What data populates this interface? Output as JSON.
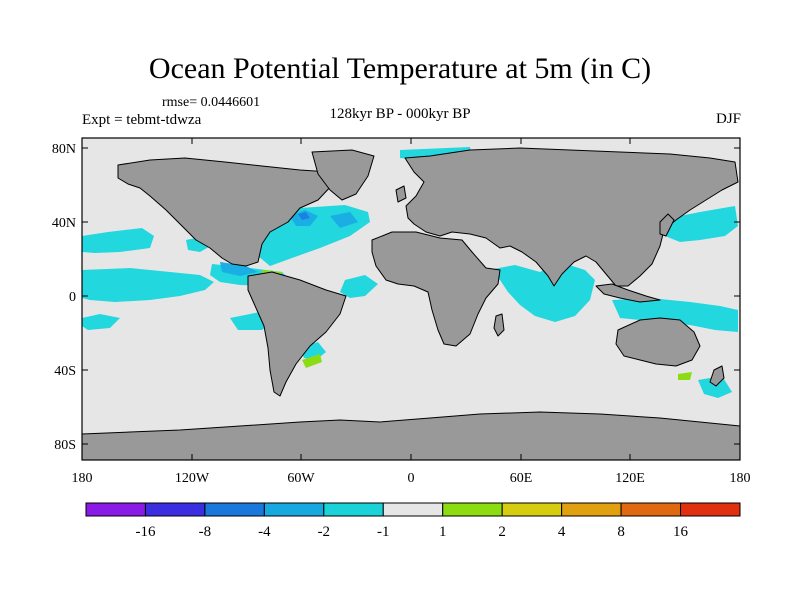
{
  "title": "Ocean Potential Temperature at 5m (in C)",
  "rmse": "rmse= 0.0446601",
  "expt": "Expt = tebmt-tdwza",
  "period": "128kyr BP - 000kyr BP",
  "season": "DJF",
  "map": {
    "projection": "cylindrical equidistant",
    "lon_range": [
      -180,
      180
    ],
    "lat_range": [
      -90,
      90
    ],
    "colors": {
      "land": "#999999",
      "ocean_neutral": "#e6e6e6",
      "coast": "#000000",
      "cool_1": "#22d7de",
      "cool_2": "#1aaee4",
      "cool_3": "#1a82e0",
      "warm_1": "#8cdc14"
    }
  },
  "axes": {
    "y_ticks": [
      "80N",
      "40N",
      "0",
      "40S",
      "80S"
    ],
    "x_ticks": [
      "180",
      "120W",
      "60W",
      "0",
      "60E",
      "120E",
      "180"
    ]
  },
  "colorbar": {
    "labels": [
      "-16",
      "-8",
      "-4",
      "-2",
      "-1",
      "1",
      "2",
      "4",
      "8",
      "16"
    ],
    "colors": [
      "#8a1ae6",
      "#3a2ee0",
      "#1a78dc",
      "#18a8e0",
      "#1ad2d8",
      "#e6e6e6",
      "#8cdc14",
      "#d6cc10",
      "#e0a010",
      "#e06810",
      "#e03010"
    ]
  }
}
